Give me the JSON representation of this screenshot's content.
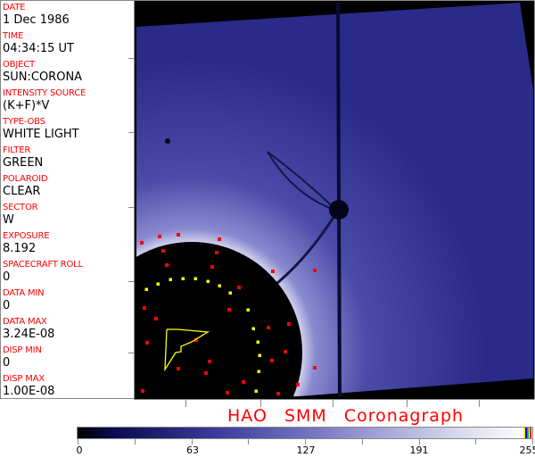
{
  "info": {
    "fields": [
      {
        "label": "DATE",
        "value": "1 Dec 1986"
      },
      {
        "label": "TIME",
        "value": "04:34:15 UT"
      },
      {
        "label": "OBJECT",
        "value": "SUN:CORONA"
      },
      {
        "label": "INTENSITY SOURCE",
        "value": "(K+F)*V"
      },
      {
        "label": "TYPE-OBS",
        "value": "WHITE LIGHT"
      },
      {
        "label": "FILTER",
        "value": "GREEN"
      },
      {
        "label": "POLAROID",
        "value": "CLEAR"
      },
      {
        "label": "SECTOR",
        "value": "W"
      },
      {
        "label": "EXPOSURE",
        "value": "8.192"
      },
      {
        "label": "SPACECRAFT ROLL",
        "value": "0"
      },
      {
        "label": "DATA MIN",
        "value": "0"
      },
      {
        "label": "DATA MAX",
        "value": "3.24E-08"
      },
      {
        "label": "DISP MIN",
        "value": "0"
      },
      {
        "label": "DISP MAX",
        "value": "1.00E-08"
      }
    ]
  },
  "title": "HAO  SMM  Coronagraph",
  "colorbar": {
    "ticks": [
      "0",
      "63",
      "127",
      "191",
      "255"
    ],
    "end_colors": [
      "#ffff00",
      "#0000ff",
      "#00c000",
      "#ff0000"
    ]
  },
  "colors": {
    "label": "#ff0000",
    "corona": "#2e2e8c",
    "marker_red": "#ff0000",
    "marker_yellow": "#ffff00"
  }
}
